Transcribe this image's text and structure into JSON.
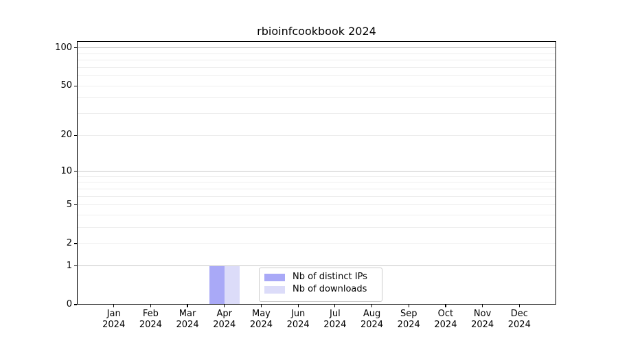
{
  "chart_data": {
    "type": "bar",
    "title": "rbioinfcookbook 2024",
    "y_scale": "log1p",
    "ylim": [
      0,
      113
    ],
    "yticks": [
      0,
      1,
      2,
      5,
      10,
      20,
      50,
      100
    ],
    "categories": [
      {
        "month": "Jan",
        "year": "2024"
      },
      {
        "month": "Feb",
        "year": "2024"
      },
      {
        "month": "Mar",
        "year": "2024"
      },
      {
        "month": "Apr",
        "year": "2024"
      },
      {
        "month": "May",
        "year": "2024"
      },
      {
        "month": "Jun",
        "year": "2024"
      },
      {
        "month": "Jul",
        "year": "2024"
      },
      {
        "month": "Aug",
        "year": "2024"
      },
      {
        "month": "Sep",
        "year": "2024"
      },
      {
        "month": "Oct",
        "year": "2024"
      },
      {
        "month": "Nov",
        "year": "2024"
      },
      {
        "month": "Dec",
        "year": "2024"
      }
    ],
    "series": [
      {
        "name": "Nb of distinct IPs",
        "color": "#a9a9f7",
        "values": [
          0,
          0,
          0,
          1,
          0,
          0,
          0,
          0,
          0,
          0,
          0,
          0
        ]
      },
      {
        "name": "Nb of downloads",
        "color": "#dcdcf9",
        "values": [
          0,
          0,
          0,
          1,
          0,
          0,
          0,
          0,
          0,
          0,
          0,
          0
        ]
      }
    ],
    "grid": {
      "minor": [
        2,
        3,
        4,
        5,
        6,
        7,
        8,
        9,
        20,
        30,
        40,
        50,
        60,
        70,
        80,
        90
      ],
      "major": [
        1,
        10,
        100
      ],
      "minor_color": "#ededed",
      "major_color": "#c6c6c6"
    },
    "legend": {
      "position": "lower center"
    },
    "xlabel": "",
    "ylabel": "",
    "colors": {
      "axis": "#000000",
      "legend_border": "#cccccc",
      "background": "#ffffff"
    }
  }
}
